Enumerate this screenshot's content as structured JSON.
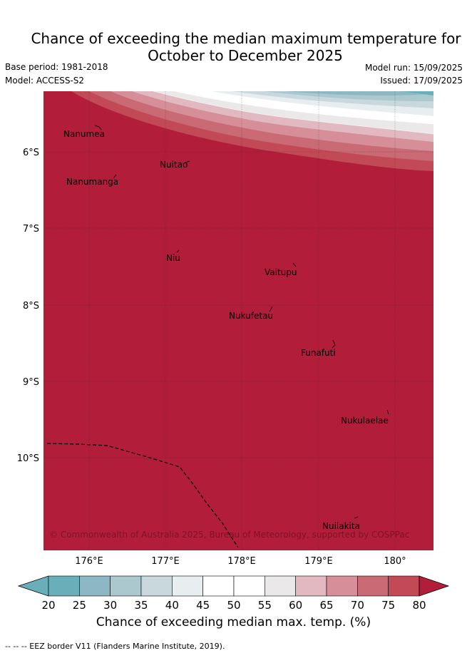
{
  "title_line1": "Chance of exceeding the median maximum temperature for",
  "title_line2": "October to December 2025",
  "base_period": "Base period: 1981-2018",
  "model": "Model: ACCESS-S2",
  "model_run": "Model run: 15/09/2025",
  "issued": "Issued: 17/09/2025",
  "credit": "© Commonwealth of Australia 2025, Bureau of Meteorology, supported by COSPPac",
  "lat_labels": [
    "6°S",
    "7°S",
    "8°S",
    "9°S",
    "10°S"
  ],
  "lon_labels": [
    "176°E",
    "177°E",
    "178°E",
    "179°E",
    "180°"
  ],
  "islands": [
    "Nanumea",
    "Nuitao",
    "Nanumanga",
    "Niu",
    "Vaitupu",
    "Nukufetau",
    "Funafuti",
    "Nukulaelae",
    "Nuilakita"
  ],
  "colorbar": {
    "ticks": [
      "20",
      "25",
      "30",
      "35",
      "40",
      "45",
      "50",
      "55",
      "60",
      "65",
      "70",
      "75",
      "80"
    ],
    "colors": [
      "#6aaeb9",
      "#8db8c3",
      "#aac8cd",
      "#c8d8dd",
      "#e8eef0",
      "#ffffff",
      "#ffffff",
      "#ebe8ea",
      "#e2b9c0",
      "#d68f98",
      "#c96a74",
      "#c24a57",
      "#b21e3a"
    ],
    "label": "Chance of exceeding median max. temp. (%)"
  },
  "legend_note": "--  --  -- EEZ border V11 (Flanders Marine Institute, 2019).",
  "colors": {
    "dominant": "#b21e3a",
    "cool": "#6aaeb9"
  }
}
